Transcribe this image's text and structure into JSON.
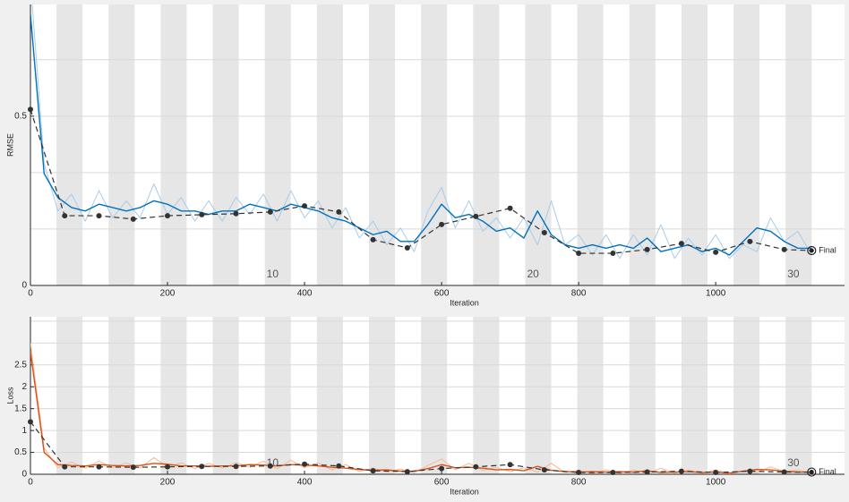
{
  "chart_data": [
    {
      "type": "line",
      "ylabel": "RMSE",
      "xlabel": "Iteration",
      "xlim": [
        0,
        1188
      ],
      "xticks": [
        0,
        200,
        400,
        600,
        800,
        1000
      ],
      "ylim": [
        0,
        0.83
      ],
      "yticks": [
        0,
        0.5
      ],
      "ygrid": [
        0.1667,
        0.3333,
        0.6667
      ],
      "epoch_length": 38,
      "epoch_count": 30,
      "epoch_labels": [
        10,
        20,
        30
      ],
      "final_label": "Final",
      "x": [
        0,
        20,
        40,
        60,
        80,
        100,
        120,
        140,
        160,
        180,
        200,
        220,
        240,
        260,
        280,
        300,
        320,
        340,
        360,
        380,
        400,
        420,
        440,
        460,
        480,
        500,
        520,
        540,
        560,
        580,
        600,
        620,
        640,
        660,
        680,
        700,
        720,
        740,
        760,
        780,
        800,
        820,
        840,
        860,
        880,
        900,
        920,
        940,
        960,
        980,
        1000,
        1020,
        1040,
        1060,
        1080,
        1100,
        1120,
        1140
      ],
      "series": [
        {
          "color": "#a9cbe8",
          "values": [
            0.9,
            0.36,
            0.22,
            0.27,
            0.19,
            0.28,
            0.2,
            0.25,
            0.2,
            0.3,
            0.21,
            0.26,
            0.19,
            0.25,
            0.19,
            0.26,
            0.21,
            0.27,
            0.19,
            0.28,
            0.2,
            0.25,
            0.17,
            0.23,
            0.14,
            0.19,
            0.12,
            0.17,
            0.1,
            0.22,
            0.29,
            0.17,
            0.25,
            0.16,
            0.2,
            0.14,
            0.2,
            0.12,
            0.25,
            0.12,
            0.15,
            0.09,
            0.15,
            0.08,
            0.15,
            0.09,
            0.18,
            0.08,
            0.14,
            0.09,
            0.15,
            0.08,
            0.12,
            0.1,
            0.2,
            0.13,
            0.16,
            0.09
          ]
        },
        {
          "color": "#0072bd",
          "values": [
            0.8,
            0.33,
            0.26,
            0.23,
            0.22,
            0.24,
            0.23,
            0.22,
            0.23,
            0.25,
            0.24,
            0.22,
            0.22,
            0.21,
            0.22,
            0.22,
            0.24,
            0.23,
            0.22,
            0.24,
            0.23,
            0.22,
            0.2,
            0.19,
            0.17,
            0.15,
            0.16,
            0.13,
            0.13,
            0.18,
            0.24,
            0.2,
            0.21,
            0.19,
            0.16,
            0.17,
            0.14,
            0.22,
            0.15,
            0.12,
            0.11,
            0.12,
            0.11,
            0.12,
            0.11,
            0.14,
            0.1,
            0.11,
            0.12,
            0.1,
            0.11,
            0.09,
            0.13,
            0.17,
            0.16,
            0.13,
            0.11,
            0.11
          ]
        },
        {
          "color": "#333333",
          "dashed": true,
          "markers": true,
          "x": [
            0,
            50,
            100,
            150,
            200,
            250,
            300,
            350,
            400,
            450,
            500,
            550,
            600,
            650,
            700,
            750,
            800,
            850,
            900,
            950,
            1000,
            1050,
            1100,
            1140
          ],
          "values": [
            0.52,
            0.206,
            0.206,
            0.196,
            0.206,
            0.209,
            0.212,
            0.217,
            0.235,
            0.217,
            0.135,
            0.111,
            0.18,
            0.204,
            0.228,
            0.156,
            0.095,
            0.095,
            0.106,
            0.124,
            0.098,
            0.13,
            0.106,
            0.103
          ]
        }
      ]
    },
    {
      "type": "line",
      "ylabel": "Loss",
      "xlabel": "Iteration",
      "xlim": [
        0,
        1188
      ],
      "xticks": [
        0,
        200,
        400,
        600,
        800,
        1000
      ],
      "ylim": [
        0,
        3.6
      ],
      "yticks": [
        0,
        0.5,
        1,
        1.5,
        2,
        2.5
      ],
      "ygrid": [
        3,
        3.5
      ],
      "epoch_length": 38,
      "epoch_count": 30,
      "epoch_labels": [
        10,
        30
      ],
      "final_label": "Final",
      "x": [
        0,
        20,
        40,
        60,
        80,
        100,
        120,
        140,
        160,
        180,
        200,
        220,
        240,
        260,
        280,
        300,
        320,
        340,
        360,
        380,
        400,
        420,
        440,
        460,
        480,
        500,
        520,
        540,
        560,
        580,
        600,
        620,
        640,
        660,
        680,
        700,
        720,
        740,
        760,
        780,
        800,
        820,
        840,
        860,
        880,
        900,
        920,
        940,
        960,
        980,
        1000,
        1020,
        1040,
        1060,
        1080,
        1100,
        1120,
        1140
      ],
      "series": [
        {
          "color": "#f3b993",
          "values": [
            3.0,
            0.6,
            0.15,
            0.28,
            0.14,
            0.3,
            0.15,
            0.26,
            0.14,
            0.38,
            0.17,
            0.26,
            0.13,
            0.25,
            0.14,
            0.27,
            0.16,
            0.3,
            0.13,
            0.32,
            0.15,
            0.26,
            0.1,
            0.22,
            0.06,
            0.14,
            0.05,
            0.12,
            0.03,
            0.2,
            0.35,
            0.1,
            0.25,
            0.09,
            0.16,
            0.06,
            0.15,
            0.05,
            0.25,
            0.04,
            0.09,
            0.02,
            0.1,
            0.02,
            0.1,
            0.02,
            0.14,
            0.02,
            0.1,
            0.02,
            0.1,
            0.01,
            0.08,
            0.04,
            0.17,
            0.06,
            0.1,
            0.02
          ]
        },
        {
          "color": "#d95319",
          "values": [
            2.8,
            0.5,
            0.22,
            0.2,
            0.19,
            0.22,
            0.2,
            0.19,
            0.2,
            0.25,
            0.23,
            0.19,
            0.19,
            0.18,
            0.19,
            0.19,
            0.22,
            0.21,
            0.19,
            0.22,
            0.21,
            0.19,
            0.16,
            0.14,
            0.11,
            0.09,
            0.1,
            0.07,
            0.07,
            0.13,
            0.22,
            0.15,
            0.16,
            0.14,
            0.1,
            0.11,
            0.08,
            0.18,
            0.09,
            0.06,
            0.05,
            0.06,
            0.05,
            0.06,
            0.05,
            0.08,
            0.04,
            0.05,
            0.06,
            0.04,
            0.05,
            0.03,
            0.07,
            0.11,
            0.1,
            0.07,
            0.05,
            0.05
          ]
        },
        {
          "color": "#333333",
          "dashed": true,
          "markers": true,
          "x": [
            0,
            50,
            100,
            150,
            200,
            250,
            300,
            350,
            400,
            450,
            500,
            550,
            600,
            650,
            700,
            750,
            800,
            850,
            900,
            950,
            1000,
            1050,
            1100,
            1140
          ],
          "values": [
            1.2,
            0.17,
            0.17,
            0.16,
            0.17,
            0.18,
            0.18,
            0.19,
            0.23,
            0.19,
            0.08,
            0.06,
            0.13,
            0.17,
            0.22,
            0.1,
            0.04,
            0.04,
            0.05,
            0.07,
            0.04,
            0.07,
            0.05,
            0.05
          ]
        }
      ]
    }
  ]
}
